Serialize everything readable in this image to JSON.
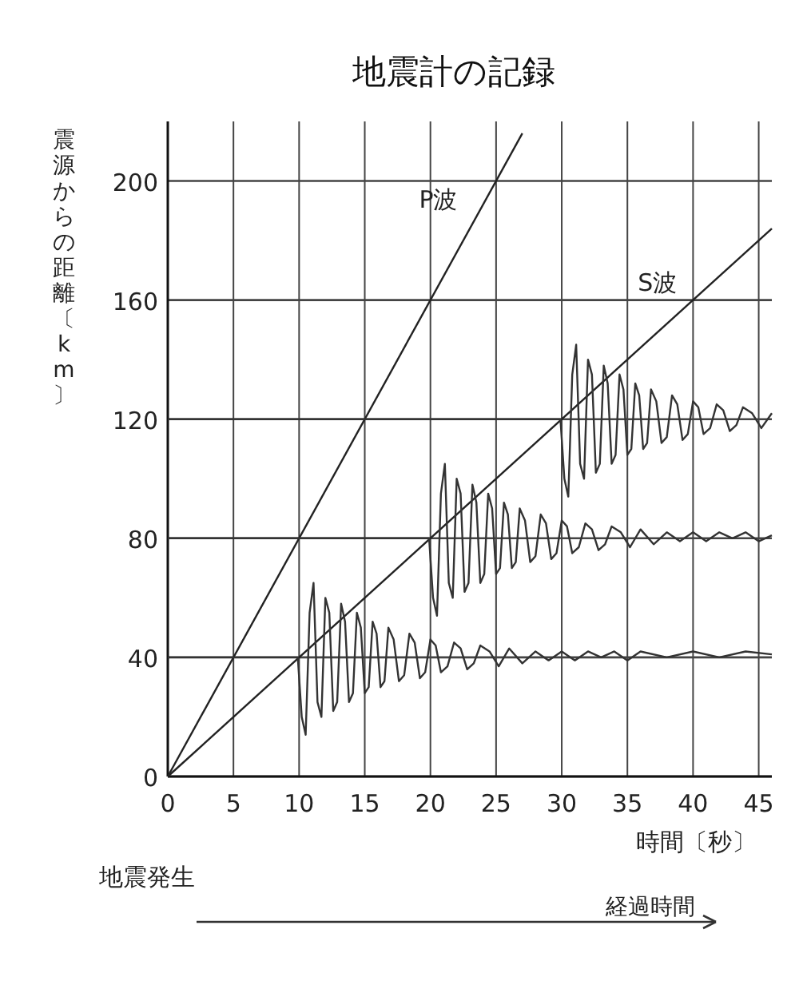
{
  "chart_data": {
    "type": "line",
    "title": "地震計の記録",
    "xlabel": "時間〔秒〕",
    "ylabel": "震源からの距離〔km〕",
    "annotations": [
      "地震発生",
      "経過時間"
    ],
    "xlim": [
      0,
      46
    ],
    "ylim": [
      0,
      220
    ],
    "xticks": [
      0,
      5,
      10,
      15,
      20,
      25,
      30,
      35,
      40,
      45
    ],
    "yticks": [
      0,
      40,
      80,
      120,
      160,
      200
    ],
    "grid": true,
    "marker": "none",
    "line_style": "solid",
    "series": [
      {
        "name": "P波",
        "color": "#222222",
        "x": [
          0,
          27
        ],
        "values": [
          0,
          216
        ]
      },
      {
        "name": "S波",
        "color": "#222222",
        "x": [
          0,
          46
        ],
        "values": [
          0,
          184
        ]
      },
      {
        "color": "#333333",
        "x": [
          0,
          9.9,
          10.2,
          10.5,
          10.8,
          11.1,
          11.4,
          11.7,
          12.0,
          12.3,
          12.6,
          12.9,
          13.2,
          13.5,
          13.8,
          14.1,
          14.4,
          14.7,
          15.0,
          15.3,
          15.6,
          15.9,
          16.2,
          16.5,
          16.8,
          17.2,
          17.6,
          18.0,
          18.4,
          18.8,
          19.2,
          19.6,
          20.0,
          20.4,
          20.8,
          21.3,
          21.8,
          22.3,
          22.8,
          23.3,
          23.8,
          24.5,
          25.2,
          26,
          27,
          28,
          29,
          30,
          31,
          32,
          33,
          34,
          35,
          36,
          38,
          40,
          42,
          44,
          46
        ],
        "values": [
          40,
          40,
          20,
          14,
          55,
          65,
          25,
          20,
          60,
          55,
          22,
          25,
          58,
          52,
          25,
          28,
          55,
          50,
          28,
          30,
          52,
          48,
          30,
          32,
          50,
          46,
          32,
          34,
          48,
          45,
          33,
          35,
          46,
          44,
          35,
          37,
          45,
          43,
          36,
          38,
          44,
          42,
          37,
          43,
          38,
          42,
          39,
          42,
          39,
          42,
          40,
          42,
          39,
          42,
          40,
          42,
          40,
          42,
          41
        ]
      },
      {
        "color": "#333333",
        "x": [
          0,
          19.9,
          20.2,
          20.5,
          20.8,
          21.1,
          21.4,
          21.7,
          22.0,
          22.3,
          22.6,
          22.9,
          23.2,
          23.5,
          23.8,
          24.1,
          24.4,
          24.7,
          25.0,
          25.3,
          25.6,
          25.9,
          26.2,
          26.5,
          26.8,
          27.2,
          27.6,
          28.0,
          28.4,
          28.8,
          29.2,
          29.6,
          30.0,
          30.4,
          30.8,
          31.3,
          31.8,
          32.3,
          32.8,
          33.3,
          33.8,
          34.5,
          35.2,
          36,
          37,
          38,
          39,
          40,
          41,
          42,
          43,
          44,
          45,
          46
        ],
        "values": [
          80,
          80,
          60,
          54,
          95,
          105,
          65,
          60,
          100,
          95,
          62,
          65,
          98,
          92,
          65,
          68,
          95,
          90,
          68,
          70,
          92,
          88,
          70,
          72,
          90,
          86,
          72,
          74,
          88,
          85,
          73,
          75,
          86,
          84,
          75,
          77,
          85,
          83,
          76,
          78,
          84,
          82,
          77,
          83,
          78,
          82,
          79,
          82,
          79,
          82,
          80,
          82,
          79,
          81
        ]
      },
      {
        "color": "#333333",
        "x": [
          0,
          29.9,
          30.2,
          30.5,
          30.8,
          31.1,
          31.4,
          31.7,
          32.0,
          32.3,
          32.6,
          32.9,
          33.2,
          33.5,
          33.8,
          34.1,
          34.4,
          34.7,
          35.0,
          35.3,
          35.6,
          35.9,
          36.2,
          36.5,
          36.8,
          37.2,
          37.6,
          38.0,
          38.4,
          38.8,
          39.2,
          39.6,
          40.0,
          40.4,
          40.8,
          41.3,
          41.8,
          42.3,
          42.8,
          43.3,
          43.8,
          44.5,
          45.2,
          46
        ],
        "values": [
          120,
          120,
          100,
          94,
          135,
          145,
          105,
          100,
          140,
          135,
          102,
          105,
          138,
          132,
          105,
          108,
          135,
          130,
          108,
          110,
          132,
          128,
          110,
          112,
          130,
          126,
          112,
          114,
          128,
          125,
          113,
          115,
          126,
          124,
          115,
          117,
          125,
          123,
          116,
          118,
          124,
          122,
          117,
          122
        ]
      }
    ]
  }
}
